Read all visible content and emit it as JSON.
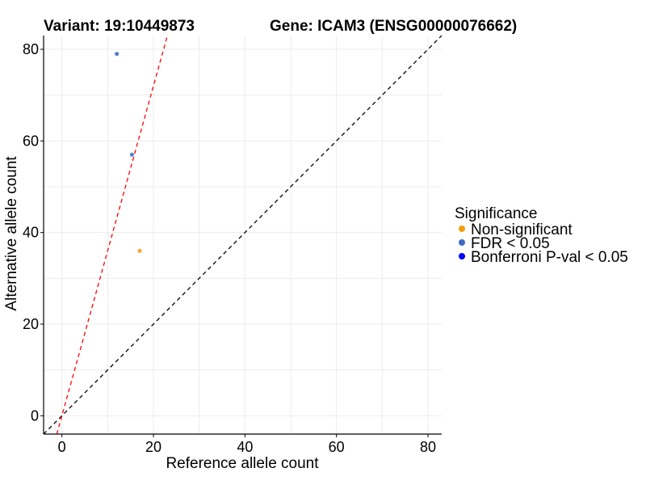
{
  "chart_data": {
    "type": "scatter",
    "title_left": "Variant: 19:10449873",
    "title_right": "Gene: ICAM3 (ENSG00000076662)",
    "xlabel": "Reference allele count",
    "ylabel": "Alternative allele count",
    "xlim": [
      -4,
      83
    ],
    "ylim": [
      -4,
      83
    ],
    "xticks": [
      0,
      20,
      40,
      60,
      80
    ],
    "yticks": [
      0,
      20,
      40,
      60,
      80
    ],
    "grid": true,
    "legend_position": "right",
    "legend_title": "Significance",
    "categories": [
      {
        "name": "Non-significant",
        "color": "#f39c12"
      },
      {
        "name": "FDR < 0.05",
        "color": "#3c6bc0"
      },
      {
        "name": "Bonferroni P-val < 0.05",
        "color": "#0000ff"
      }
    ],
    "points": [
      {
        "x": 12,
        "y": 79,
        "category": "FDR < 0.05"
      },
      {
        "x": 15.3,
        "y": 57,
        "category": "FDR < 0.05"
      },
      {
        "x": 17,
        "y": 36,
        "category": "Non-significant"
      }
    ],
    "reference_lines": [
      {
        "slope": 1,
        "intercept": 0,
        "color": "#000000",
        "style": "dashed"
      },
      {
        "slope": 3.6,
        "intercept": 0,
        "color": "#ff0000",
        "style": "dashed"
      }
    ]
  }
}
